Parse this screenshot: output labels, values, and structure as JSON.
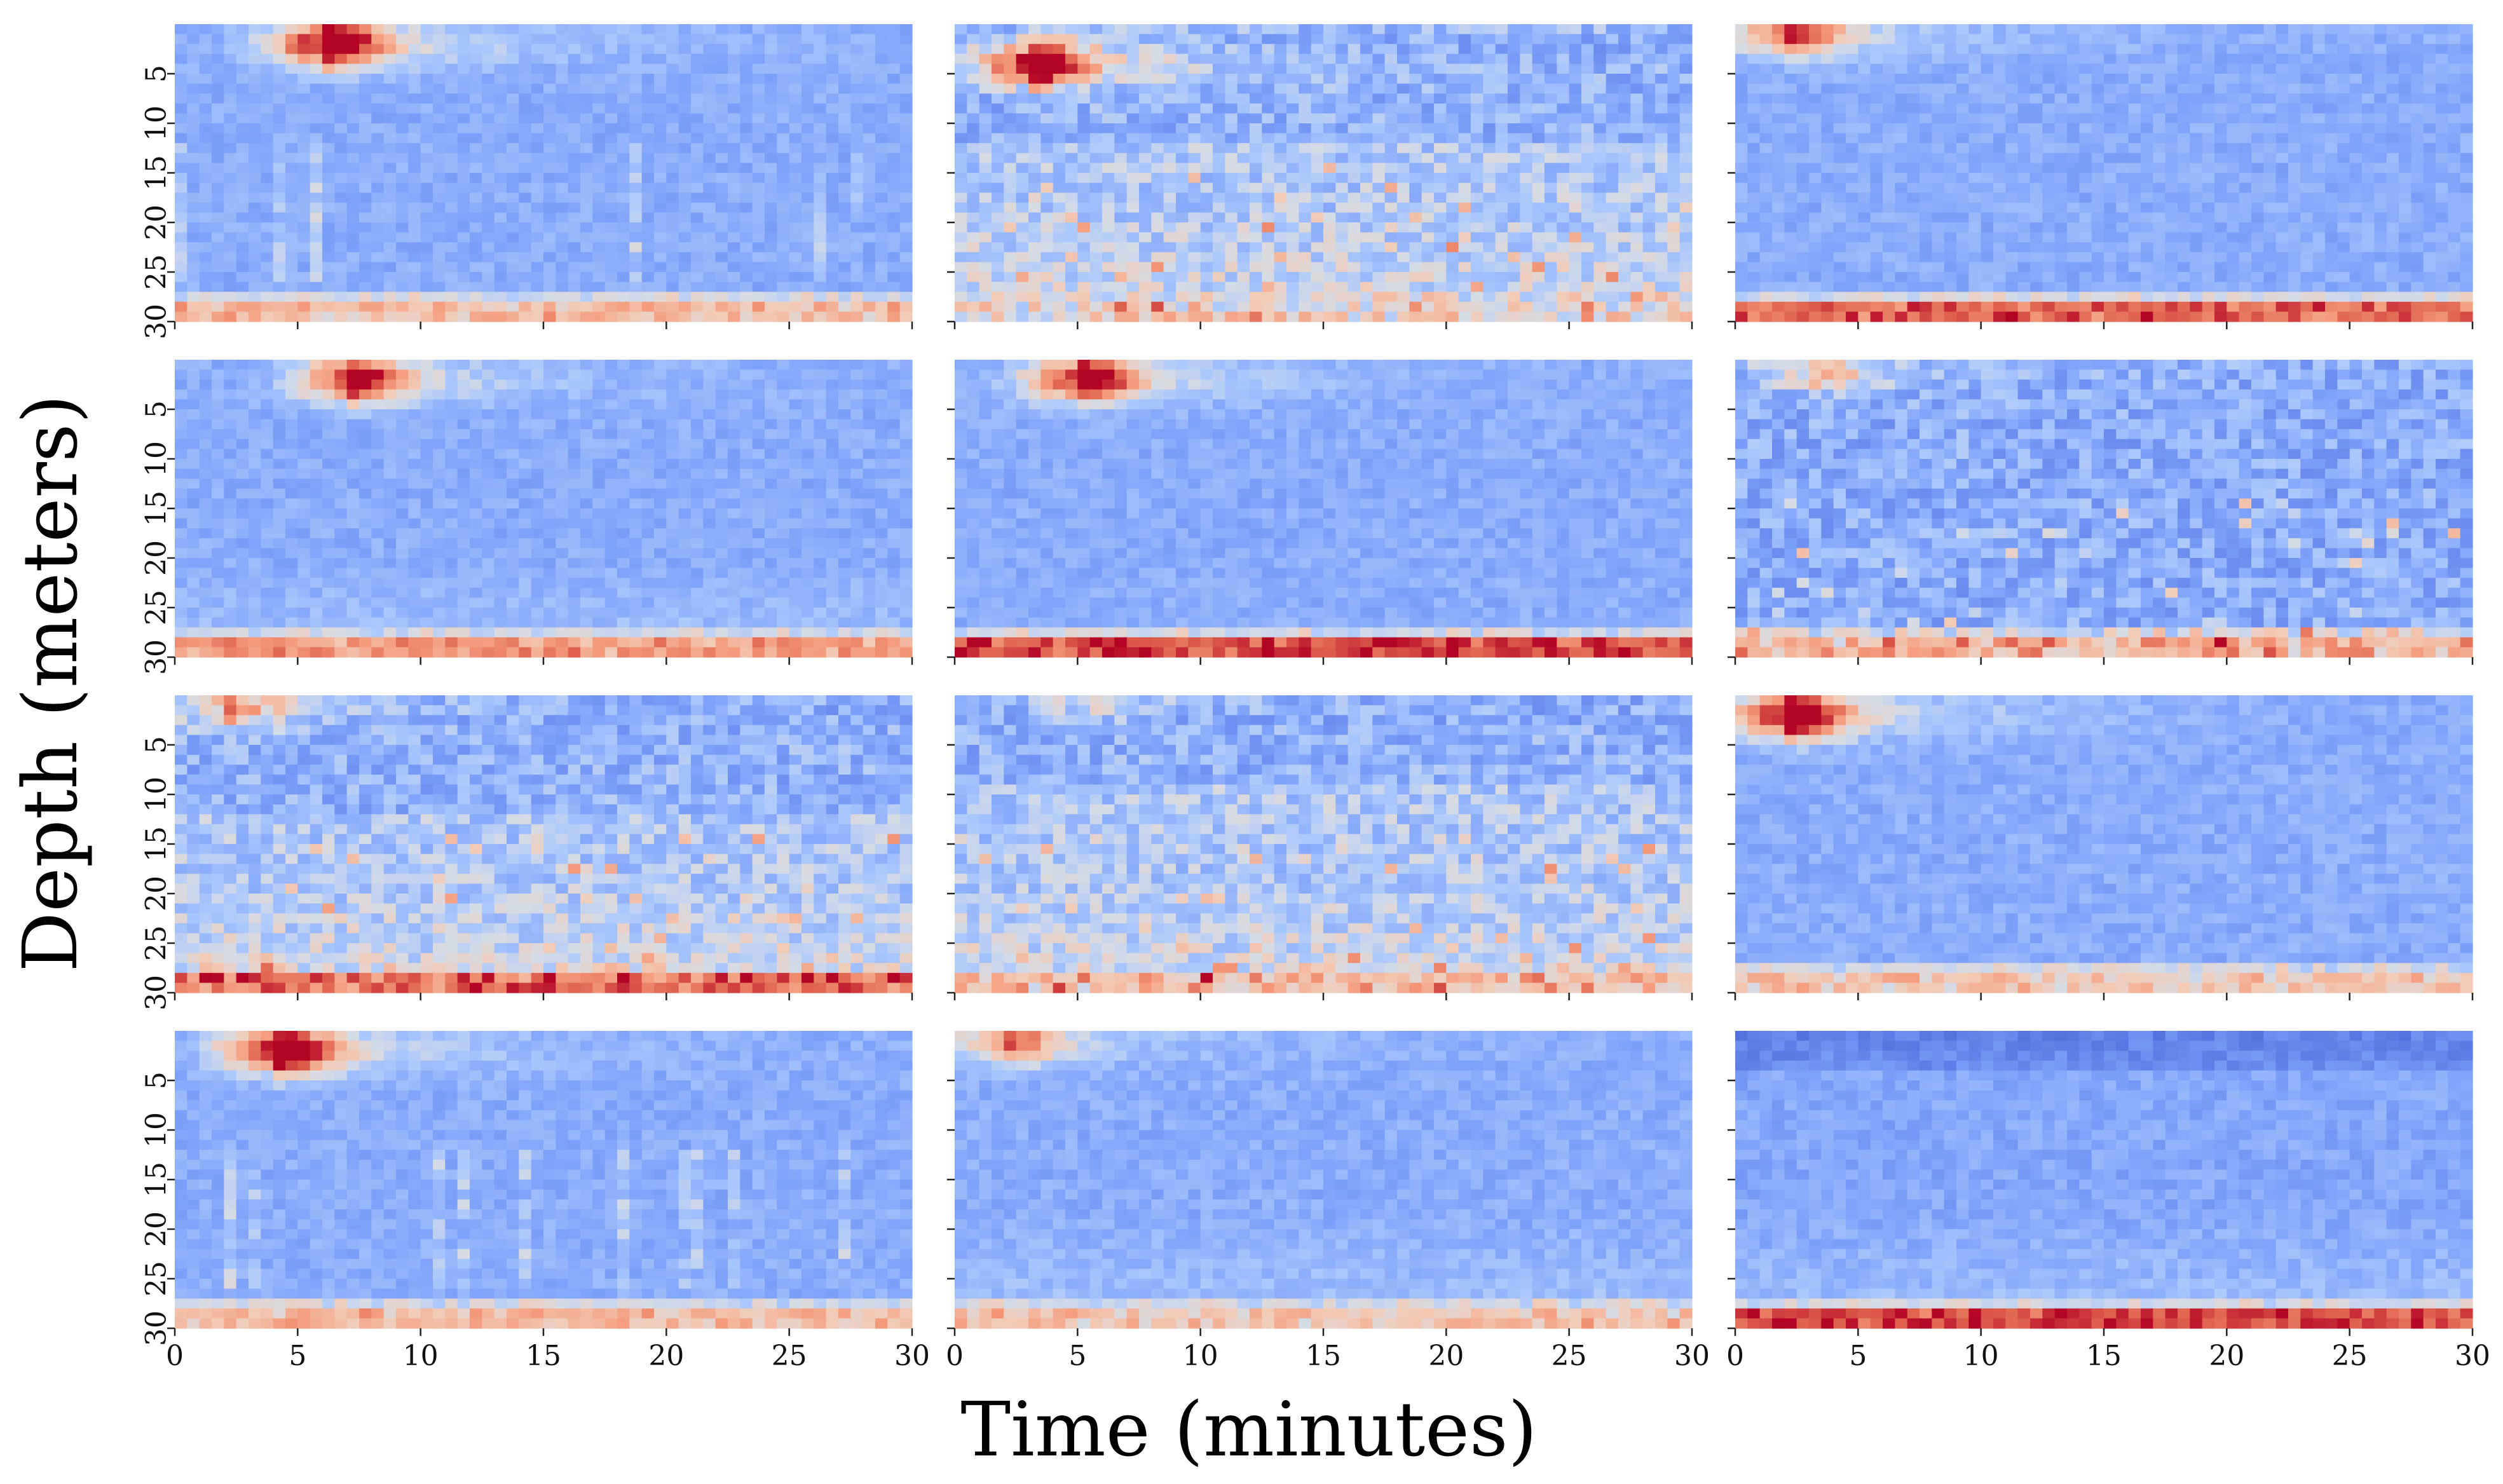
{
  "chart_data": {
    "type": "heatmap",
    "layout": {
      "rows": 4,
      "cols": 3,
      "panels": 12
    },
    "xlabel": "Time (minutes)",
    "ylabel": "Depth (meters)",
    "xlim": [
      0,
      30
    ],
    "ylim": [
      0,
      30
    ],
    "x_ticks": [
      0,
      5,
      10,
      15,
      20,
      25,
      30
    ],
    "y_ticks": [
      5,
      10,
      15,
      20,
      25,
      30
    ],
    "x_tick_labels": [
      "0",
      "5",
      "10",
      "15",
      "20",
      "25",
      "30"
    ],
    "y_tick_labels": [
      "5",
      "10",
      "15",
      "20",
      "25",
      "30"
    ],
    "grid": false,
    "legend": "none",
    "colormap": "coolwarm",
    "colors": {
      "low": "#3b4cc0",
      "mid": "#dddddd",
      "high": "#b40426"
    },
    "panels": [
      {
        "row": 0,
        "col": 0,
        "surface_blob": {
          "t": 6,
          "d": 2,
          "strength": 1.0
        },
        "blue_band": [
          8,
          28
        ],
        "background": 0.28,
        "bottom_band": 0.72,
        "noise": "columns"
      },
      {
        "row": 0,
        "col": 1,
        "surface_blob": {
          "t": 3,
          "d": 4,
          "strength": 1.0
        },
        "blue_band": [
          1,
          12
        ],
        "background": 0.45,
        "bottom_band": 0.65,
        "noise": "scattered"
      },
      {
        "row": 0,
        "col": 2,
        "surface_blob": {
          "t": 2,
          "d": 1,
          "strength": 0.7
        },
        "blue_band": [
          4,
          27
        ],
        "background": 0.2,
        "bottom_band": 0.9,
        "noise": "light"
      },
      {
        "row": 1,
        "col": 0,
        "surface_blob": {
          "t": 7,
          "d": 2,
          "strength": 0.85
        },
        "blue_band": [
          0,
          6
        ],
        "background": 0.33,
        "bottom_band": 0.8,
        "noise": "light"
      },
      {
        "row": 1,
        "col": 1,
        "surface_blob": {
          "t": 5,
          "d": 2,
          "strength": 0.9
        },
        "blue_band": [
          12,
          22
        ],
        "background": 0.27,
        "bottom_band": 0.95,
        "noise": "light"
      },
      {
        "row": 1,
        "col": 2,
        "surface_blob": {
          "t": 3,
          "d": 1,
          "strength": 0.4
        },
        "blue_band": [
          4,
          20
        ],
        "background": 0.22,
        "bottom_band": 0.75,
        "noise": "scattered"
      },
      {
        "row": 2,
        "col": 0,
        "surface_blob": {
          "t": 2,
          "d": 1,
          "strength": 0.5
        },
        "blue_band": [
          0,
          12
        ],
        "background": 0.45,
        "bottom_band": 0.88,
        "noise": "scattered"
      },
      {
        "row": 2,
        "col": 1,
        "surface_blob": {
          "t": 5,
          "d": 0,
          "strength": 0.3
        },
        "blue_band": [
          0,
          9
        ],
        "background": 0.45,
        "bottom_band": 0.72,
        "noise": "scattered"
      },
      {
        "row": 2,
        "col": 2,
        "surface_blob": {
          "t": 2,
          "d": 2,
          "strength": 1.0
        },
        "blue_band": [
          6,
          20
        ],
        "background": 0.25,
        "bottom_band": 0.68,
        "noise": "light"
      },
      {
        "row": 3,
        "col": 0,
        "surface_blob": {
          "t": 4,
          "d": 2,
          "strength": 1.0
        },
        "blue_band": [
          11,
          20
        ],
        "background": 0.28,
        "bottom_band": 0.72,
        "noise": "columns"
      },
      {
        "row": 3,
        "col": 1,
        "surface_blob": {
          "t": 2,
          "d": 1,
          "strength": 0.6
        },
        "blue_band": [
          0,
          4
        ],
        "background": 0.34,
        "bottom_band": 0.7,
        "noise": "light"
      },
      {
        "row": 3,
        "col": 2,
        "surface_blob": {
          "t": 1,
          "d": 0,
          "strength": 0.0
        },
        "blue_band": [
          0,
          4
        ],
        "background": 0.33,
        "bottom_band": 0.95,
        "noise": "light"
      }
    ]
  }
}
